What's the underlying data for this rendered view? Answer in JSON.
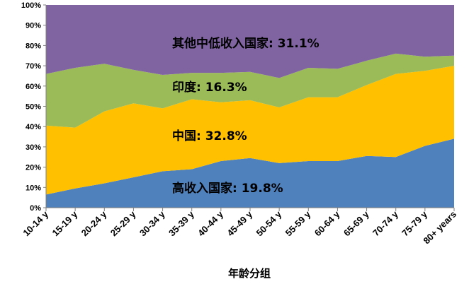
{
  "chart_data": {
    "type": "area",
    "stacked": true,
    "xlabel": "年龄分组",
    "ylabel": "",
    "ylim": [
      0,
      100
    ],
    "y_tick_labels": [
      "0%",
      "10%",
      "20%",
      "30%",
      "40%",
      "50%",
      "60%",
      "70%",
      "80%",
      "90%",
      "100%"
    ],
    "categories": [
      "10-14 y",
      "15-19 y",
      "20-24 y",
      "25-29 y",
      "30-34 y",
      "35-39 y",
      "40-44 y",
      "45-49 y",
      "50-54 y",
      "55-59 y",
      "60-64 y",
      "65-69 y",
      "70-74 y",
      "75-79 y",
      "80+ years"
    ],
    "series": [
      {
        "name": "高收入国家",
        "color": "#4f81bd",
        "values": [
          6.5,
          9.5,
          12,
          15,
          18,
          19,
          23,
          24.5,
          22,
          23,
          23,
          25.5,
          25,
          30.5,
          34
        ]
      },
      {
        "name": "中国",
        "color": "#ffc000",
        "values": [
          34,
          30,
          35.5,
          36.5,
          31,
          34.5,
          29,
          28.5,
          27.5,
          31.5,
          31.5,
          35,
          41,
          37,
          36
        ]
      },
      {
        "name": "印度",
        "color": "#9bbb59",
        "values": [
          25.5,
          29.5,
          23.5,
          16.5,
          16.5,
          13,
          14.5,
          14,
          14.5,
          14.5,
          14,
          12,
          10,
          7,
          5
        ]
      },
      {
        "name": "其他中低收入国家",
        "color": "#8064a2",
        "values": [
          34,
          31,
          29,
          32,
          34.5,
          33.5,
          33.5,
          33,
          36,
          31,
          31.5,
          27.5,
          24,
          25.5,
          25
        ]
      }
    ],
    "annotations": [
      {
        "text": "其他中低收入国家: 31.1%",
        "series": "其他中低收入国家"
      },
      {
        "text": "印度: 16.3%",
        "series": "印度"
      },
      {
        "text": "中国: 32.8%",
        "series": "中国"
      },
      {
        "text": "高收入国家: 19.8%",
        "series": "高收入国家"
      }
    ],
    "grid": false,
    "legend": "none"
  }
}
